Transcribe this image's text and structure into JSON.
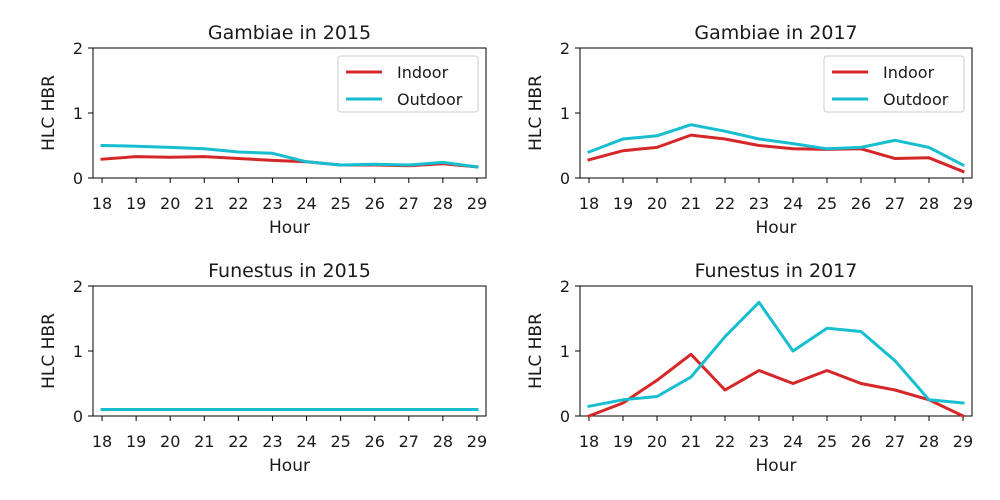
{
  "colors": {
    "indoor": "#d62728",
    "outdoor": "#17becf"
  },
  "chart_data": [
    {
      "type": "line",
      "title": "Gambiae in 2015",
      "xlabel": "Hour",
      "ylabel": "HLC HBR",
      "x": [
        18,
        19,
        20,
        21,
        22,
        23,
        24,
        25,
        26,
        27,
        28,
        29
      ],
      "ylim": [
        0,
        2
      ],
      "yticks": [
        0,
        1,
        2
      ],
      "legend": "top-right",
      "series": [
        {
          "name": "Indoor",
          "color_key": "indoor",
          "values": [
            0.29,
            0.33,
            0.32,
            0.33,
            0.3,
            0.27,
            0.25,
            0.2,
            0.2,
            0.19,
            0.22,
            0.17
          ]
        },
        {
          "name": "Outdoor",
          "color_key": "outdoor",
          "values": [
            0.5,
            0.49,
            0.47,
            0.45,
            0.4,
            0.38,
            0.25,
            0.2,
            0.21,
            0.2,
            0.24,
            0.17
          ]
        }
      ]
    },
    {
      "type": "line",
      "title": "Gambiae in 2017",
      "xlabel": "Hour",
      "ylabel": "HLC HBR",
      "x": [
        18,
        19,
        20,
        21,
        22,
        23,
        24,
        25,
        26,
        27,
        28,
        29
      ],
      "ylim": [
        0,
        2
      ],
      "yticks": [
        0,
        1,
        2
      ],
      "legend": "top-right",
      "series": [
        {
          "name": "Indoor",
          "color_key": "indoor",
          "values": [
            0.28,
            0.42,
            0.47,
            0.66,
            0.6,
            0.5,
            0.45,
            0.44,
            0.45,
            0.3,
            0.31,
            0.1
          ]
        },
        {
          "name": "Outdoor",
          "color_key": "outdoor",
          "values": [
            0.4,
            0.6,
            0.65,
            0.82,
            0.72,
            0.6,
            0.53,
            0.45,
            0.47,
            0.58,
            0.47,
            0.2
          ]
        }
      ]
    },
    {
      "type": "line",
      "title": "Funestus in 2015",
      "xlabel": "Hour",
      "ylabel": "HLC HBR",
      "x": [
        18,
        19,
        20,
        21,
        22,
        23,
        24,
        25,
        26,
        27,
        28,
        29
      ],
      "ylim": [
        0,
        2
      ],
      "yticks": [
        0,
        1,
        2
      ],
      "legend": "none",
      "series": [
        {
          "color_key": "indoor",
          "values": [
            0.1,
            0.1,
            0.1,
            0.1,
            0.1,
            0.1,
            0.1,
            0.1,
            0.1,
            0.1,
            0.1,
            0.1
          ]
        },
        {
          "color_key": "outdoor",
          "values": [
            0.1,
            0.1,
            0.1,
            0.1,
            0.1,
            0.1,
            0.1,
            0.1,
            0.1,
            0.1,
            0.1,
            0.1
          ]
        }
      ]
    },
    {
      "type": "line",
      "title": "Funestus in 2017",
      "xlabel": "Hour",
      "ylabel": "HLC HBR",
      "x": [
        18,
        19,
        20,
        21,
        22,
        23,
        24,
        25,
        26,
        27,
        28,
        29
      ],
      "ylim": [
        0,
        2
      ],
      "yticks": [
        0,
        1,
        2
      ],
      "legend": "none",
      "series": [
        {
          "color_key": "indoor",
          "values": [
            0.0,
            0.2,
            0.55,
            0.95,
            0.4,
            0.7,
            0.5,
            0.7,
            0.5,
            0.4,
            0.25,
            0.0
          ]
        },
        {
          "color_key": "outdoor",
          "values": [
            0.15,
            0.25,
            0.3,
            0.6,
            1.22,
            1.75,
            1.0,
            1.35,
            1.3,
            0.85,
            0.25,
            0.2
          ]
        }
      ]
    }
  ]
}
